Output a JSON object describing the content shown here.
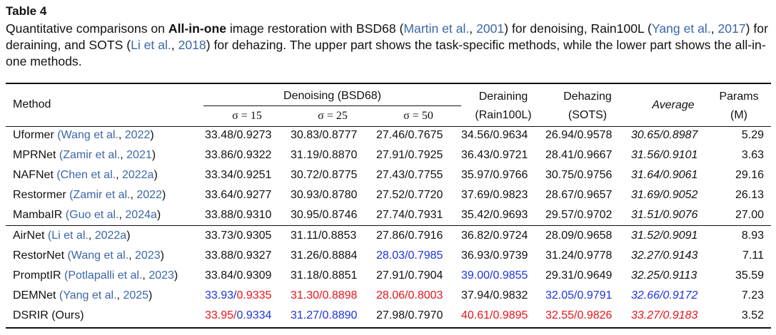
{
  "table_label": "Table 4",
  "caption": {
    "parts": [
      {
        "t": "Quantitative comparisons on "
      },
      {
        "t": "All-in-one",
        "bold": true
      },
      {
        "t": " image restoration with BSD68 ("
      },
      {
        "t": "Martin et al.",
        "cite": true
      },
      {
        "t": ", "
      },
      {
        "t": "2001",
        "cite": true
      },
      {
        "t": ") for denoising, Rain100L ("
      },
      {
        "t": "Yang et al.",
        "cite": true
      },
      {
        "t": ", "
      },
      {
        "t": "2017",
        "cite": true
      },
      {
        "t": ") for deraining, and SOTS ("
      },
      {
        "t": "Li et al.",
        "cite": true
      },
      {
        "t": ", "
      },
      {
        "t": "2018",
        "cite": true
      },
      {
        "t": ") for dehazing.  The upper part shows the task-specific methods, while the lower part shows the all-in-one methods."
      }
    ]
  },
  "header": {
    "method": "Method",
    "denoising": "Denoising (BSD68)",
    "sigma15": "σ = 15",
    "sigma25": "σ = 25",
    "sigma50": "σ = 50",
    "deraining_1": "Deraining",
    "deraining_2": "(Rain100L)",
    "dehazing_1": "Dehazing",
    "dehazing_2": "(SOTS)",
    "average": "Average",
    "params_1": "Params",
    "params_2": "(M)"
  },
  "colors": {
    "red": "#e8141b",
    "blue": "#1f33e0",
    "cite": "#3b66a8"
  },
  "rows": [
    {
      "name": "Uformer",
      "cite_authors": "Wang et al.",
      "cite_year": "2022",
      "cells": [
        [
          "33.48",
          "0.9273"
        ],
        [
          "30.83",
          "0.8777"
        ],
        [
          "27.46",
          "0.7675"
        ],
        [
          "34.56",
          "0.9634"
        ],
        [
          "26.94",
          "0.9578"
        ],
        [
          "30.65",
          "0.8987"
        ]
      ],
      "colors": [
        [
          "",
          ""
        ],
        [
          "",
          ""
        ],
        [
          "",
          ""
        ],
        [
          "",
          ""
        ],
        [
          "",
          ""
        ],
        [
          "",
          ""
        ]
      ],
      "params": "5.29"
    },
    {
      "name": "MPRNet",
      "cite_authors": "Zamir et al.",
      "cite_year": "2021",
      "cells": [
        [
          "33.86",
          "0.9322"
        ],
        [
          "31.19",
          "0.8870"
        ],
        [
          "27.91",
          "0.7925"
        ],
        [
          "36.43",
          "0.9721"
        ],
        [
          "28.41",
          "0.9667"
        ],
        [
          "31.56",
          "0.9101"
        ]
      ],
      "colors": [
        [
          "",
          ""
        ],
        [
          "",
          ""
        ],
        [
          "",
          ""
        ],
        [
          "",
          ""
        ],
        [
          "",
          ""
        ],
        [
          "",
          ""
        ]
      ],
      "params": "3.63"
    },
    {
      "name": "NAFNet",
      "cite_authors": "Chen et al.",
      "cite_year": "2022a",
      "cells": [
        [
          "33.34",
          "0.9251"
        ],
        [
          "30.72",
          "0.8775"
        ],
        [
          "27.43",
          "0.7755"
        ],
        [
          "35.97",
          "0.9766"
        ],
        [
          "30.75",
          "0.9756"
        ],
        [
          "31.64",
          "0.9061"
        ]
      ],
      "colors": [
        [
          "",
          ""
        ],
        [
          "",
          ""
        ],
        [
          "",
          ""
        ],
        [
          "",
          ""
        ],
        [
          "",
          ""
        ],
        [
          "",
          ""
        ]
      ],
      "params": "29.16"
    },
    {
      "name": "Restormer",
      "cite_authors": "Zamir et al.",
      "cite_year": "2022",
      "cells": [
        [
          "33.64",
          "0.9277"
        ],
        [
          "30.93",
          "0.8780"
        ],
        [
          "27.52",
          "0.7720"
        ],
        [
          "37.69",
          "0.9823"
        ],
        [
          "28.67",
          "0.9657"
        ],
        [
          "31.69",
          "0.9052"
        ]
      ],
      "colors": [
        [
          "",
          ""
        ],
        [
          "",
          ""
        ],
        [
          "",
          ""
        ],
        [
          "",
          ""
        ],
        [
          "",
          ""
        ],
        [
          "",
          ""
        ]
      ],
      "params": "26.13"
    },
    {
      "name": "MambaIR",
      "cite_authors": "Guo et al.",
      "cite_year": "2024a",
      "cells": [
        [
          "33.88",
          "0.9310"
        ],
        [
          "30.95",
          "0.8746"
        ],
        [
          "27.74",
          "0.7931"
        ],
        [
          "35.42",
          "0.9693"
        ],
        [
          "29.57",
          "0.9702"
        ],
        [
          "31.51",
          "0.9076"
        ]
      ],
      "colors": [
        [
          "",
          ""
        ],
        [
          "",
          ""
        ],
        [
          "",
          ""
        ],
        [
          "",
          ""
        ],
        [
          "",
          ""
        ],
        [
          "",
          ""
        ]
      ],
      "params": "27.00"
    },
    {
      "name": "AirNet",
      "cite_authors": "Li et al.",
      "cite_year": "2022a",
      "cells": [
        [
          "33.73",
          "0.9305"
        ],
        [
          "31.11",
          "0.8853"
        ],
        [
          "27.86",
          "0.7916"
        ],
        [
          "36.82",
          "0.9724"
        ],
        [
          "28.09",
          "0.9658"
        ],
        [
          "31.52",
          "0.9091"
        ]
      ],
      "colors": [
        [
          "",
          ""
        ],
        [
          "",
          ""
        ],
        [
          "",
          ""
        ],
        [
          "",
          ""
        ],
        [
          "",
          ""
        ],
        [
          "",
          ""
        ]
      ],
      "params": "8.93"
    },
    {
      "name": "RestorNet",
      "cite_authors": "Wang et al.",
      "cite_year": "2023",
      "cells": [
        [
          "33.88",
          "0.9327"
        ],
        [
          "31.26",
          "0.8884"
        ],
        [
          "28.03",
          "0.7985"
        ],
        [
          "36.93",
          "0.9739"
        ],
        [
          "31.24",
          "0.9778"
        ],
        [
          "32.27",
          "0.9143"
        ]
      ],
      "colors": [
        [
          "",
          ""
        ],
        [
          "",
          ""
        ],
        [
          "blue",
          "blue"
        ],
        [
          "",
          ""
        ],
        [
          "",
          ""
        ],
        [
          "",
          ""
        ]
      ],
      "params": "7.11"
    },
    {
      "name": "PromptIR",
      "cite_authors": "Potlapalli et al.",
      "cite_year": "2023",
      "cells": [
        [
          "33.84",
          "0.9309"
        ],
        [
          "31.18",
          "0.8851"
        ],
        [
          "27.91",
          "0.7904"
        ],
        [
          "39.00",
          "0.9855"
        ],
        [
          "29.31",
          "0.9649"
        ],
        [
          "32.25",
          "0.9113"
        ]
      ],
      "colors": [
        [
          "",
          ""
        ],
        [
          "",
          ""
        ],
        [
          "",
          ""
        ],
        [
          "blue",
          "blue"
        ],
        [
          "",
          ""
        ],
        [
          "",
          ""
        ]
      ],
      "params": "35.59"
    },
    {
      "name": "DEMNet",
      "cite_authors": "Yang et al.",
      "cite_year": "2025",
      "cells": [
        [
          "33.93",
          "0.9335"
        ],
        [
          "31.30",
          "0.8898"
        ],
        [
          "28.06",
          "0.8003"
        ],
        [
          "37.94",
          "0.9832"
        ],
        [
          "32.05",
          "0.9791"
        ],
        [
          "32.66",
          "0.9172"
        ]
      ],
      "colors": [
        [
          "blue",
          "red"
        ],
        [
          "red",
          "red"
        ],
        [
          "red",
          "red"
        ],
        [
          "",
          ""
        ],
        [
          "blue",
          "blue"
        ],
        [
          "blue",
          "blue"
        ]
      ],
      "params": "7.23"
    },
    {
      "name": "DSRIR (Ours)",
      "cite_authors": "",
      "cite_year": "",
      "cells": [
        [
          "33.95",
          "0.9334"
        ],
        [
          "31.27",
          "0.8890"
        ],
        [
          "27.98",
          "0.7970"
        ],
        [
          "40.61",
          "0.9895"
        ],
        [
          "32.55",
          "0.9826"
        ],
        [
          "33.27",
          "0.9183"
        ]
      ],
      "colors": [
        [
          "red",
          "blue"
        ],
        [
          "blue",
          "blue"
        ],
        [
          "",
          ""
        ],
        [
          "red",
          "red"
        ],
        [
          "red",
          "red"
        ],
        [
          "red",
          "red"
        ]
      ],
      "params": "3.52"
    }
  ]
}
